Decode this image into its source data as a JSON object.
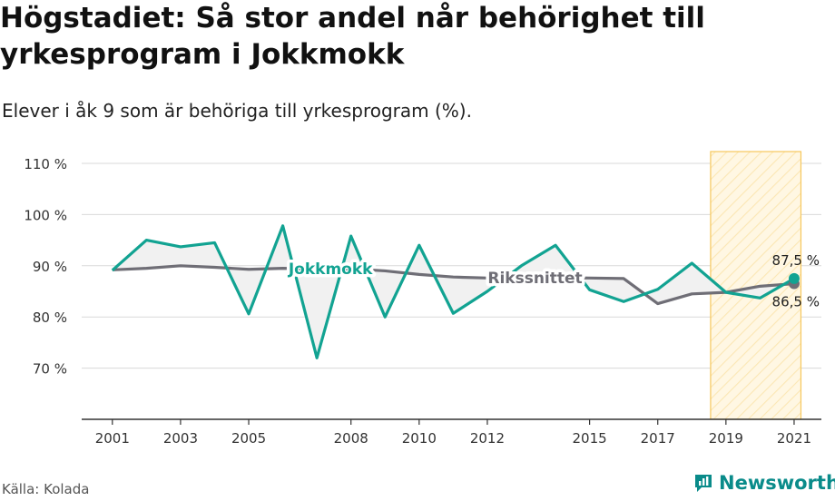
{
  "title": "Högstadiet: Så stor andel når behörighet till yrkesprogram i Jokkmokk",
  "subtitle": "Elever i åk 9 som är behöriga till yrkesprogram (%).",
  "source": "Källa: Kolada",
  "brand": {
    "name": "Newsworthy",
    "icon": "newsworthy-logo-icon"
  },
  "colors": {
    "jokkmokk": "#12a392",
    "riket": "#6f6e76",
    "highlight_fill": "#fbe7b4",
    "highlight_stroke": "#f6c75c",
    "grid": "#d9d9d9",
    "axis": "#333333"
  },
  "chart_data": {
    "type": "line",
    "x": [
      2001,
      2002,
      2003,
      2004,
      2005,
      2006,
      2007,
      2008,
      2009,
      2010,
      2011,
      2012,
      2013,
      2014,
      2015,
      2016,
      2017,
      2018,
      2019,
      2020,
      2021
    ],
    "x_tick_labels": [
      "2001",
      "2003",
      "2005",
      "2008",
      "2010",
      "2012",
      "2015",
      "2017",
      "2019",
      "2021"
    ],
    "y_ticks": [
      70,
      80,
      90,
      100,
      110
    ],
    "y_tick_labels": [
      "70 %",
      "80 %",
      "90 %",
      "100 %",
      "110 %"
    ],
    "ylim": [
      60,
      110
    ],
    "xlim": [
      2000.1,
      2021.8
    ],
    "grid": true,
    "highlight_range": [
      2018.55,
      2021.2
    ],
    "series": [
      {
        "name": "Jokkmokk",
        "values": [
          89.1,
          95.0,
          93.7,
          94.5,
          80.6,
          97.8,
          72.0,
          95.8,
          80.0,
          94.0,
          80.7,
          85.0,
          90.0,
          94.0,
          85.3,
          83.0,
          85.4,
          90.5,
          84.8,
          83.7,
          87.5
        ],
        "end_label": "87,5 %"
      },
      {
        "name": "Rikssnittet",
        "values": [
          89.2,
          89.5,
          90.0,
          89.7,
          89.3,
          89.5,
          89.4,
          89.4,
          89.0,
          88.3,
          87.8,
          87.6,
          87.7,
          87.7,
          87.6,
          87.5,
          82.6,
          84.5,
          84.8,
          86.0,
          86.5
        ],
        "end_label": "86,5 %"
      }
    ]
  }
}
